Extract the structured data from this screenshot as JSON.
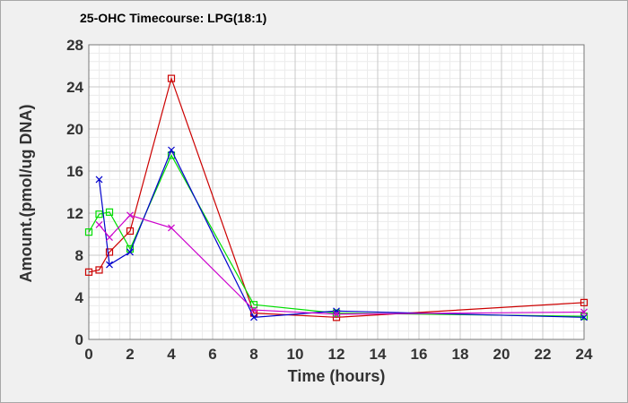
{
  "chart_data": {
    "type": "line",
    "title": "25-OHC Timecourse: LPG(18:1)",
    "xlabel": "Time (hours)",
    "ylabel": "Amount.(pmol/ug DNA)",
    "xlim": [
      0,
      24
    ],
    "ylim": [
      0,
      28
    ],
    "xticks": [
      0,
      2,
      4,
      6,
      8,
      10,
      12,
      14,
      16,
      18,
      20,
      22,
      24
    ],
    "yticks": [
      0,
      4,
      8,
      12,
      16,
      20,
      24,
      28
    ],
    "grid": true,
    "series": [
      {
        "color": "#cc0000",
        "marker": "square",
        "x": [
          0,
          0.5,
          1,
          2,
          4,
          8,
          12,
          24
        ],
        "y": [
          6.4,
          6.6,
          8.3,
          10.3,
          24.8,
          2.5,
          2.1,
          3.5
        ]
      },
      {
        "color": "#00dd00",
        "marker": "square",
        "x": [
          0,
          0.5,
          1,
          2,
          4,
          8,
          12,
          24
        ],
        "y": [
          10.2,
          11.9,
          12.1,
          8.6,
          17.5,
          3.3,
          2.5,
          2.2
        ]
      },
      {
        "color": "#0000cc",
        "marker": "x",
        "x": [
          0.5,
          1,
          2,
          4,
          8,
          12,
          24
        ],
        "y": [
          15.2,
          7.1,
          8.3,
          18.0,
          2.1,
          2.7,
          2.1
        ]
      },
      {
        "color": "#cc00cc",
        "marker": "x",
        "x": [
          0.5,
          1,
          2,
          4,
          8,
          12,
          24
        ],
        "y": [
          10.9,
          9.7,
          11.8,
          10.6,
          2.8,
          2.4,
          2.6
        ]
      }
    ]
  }
}
